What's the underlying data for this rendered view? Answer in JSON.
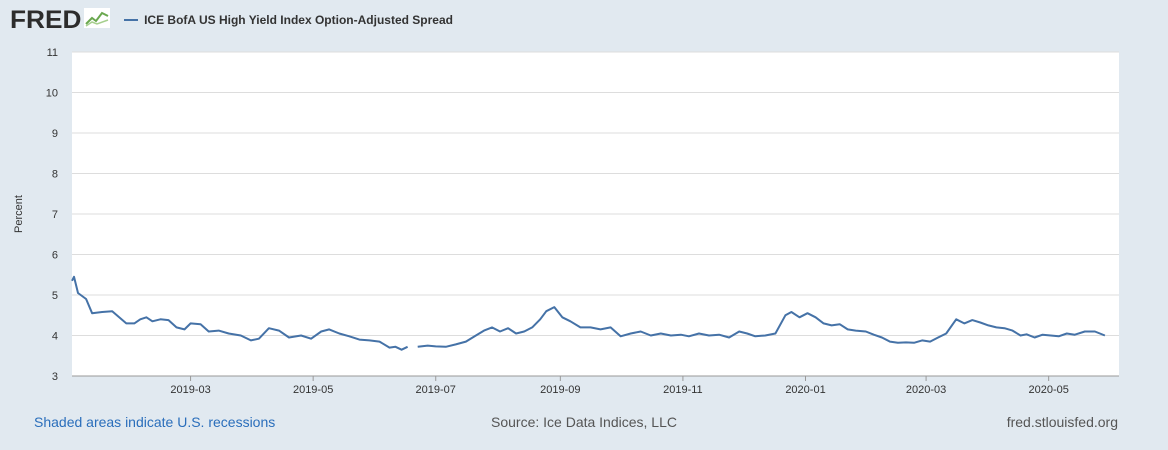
{
  "header": {
    "logo_text": "FRED",
    "logo_icon": "chart-line-icon",
    "legend_label": "ICE BofA US High Yield Index Option-Adjusted Spread"
  },
  "footer": {
    "recessions_note": "Shaded areas indicate U.S. recessions",
    "source": "Source: Ice Data Indices, LLC",
    "site": "fred.stlouisfed.org"
  },
  "colors": {
    "line": "#4572a7",
    "background": "#e1e9f0",
    "plot_background": "#ffffff",
    "grid": "#dddddd",
    "link": "#2a6ebb"
  },
  "chart_data": {
    "type": "line",
    "title": "ICE BofA US High Yield Index Option-Adjusted Spread",
    "xlabel": "",
    "ylabel": "Percent",
    "ylim": [
      3,
      11
    ],
    "yticks": [
      3,
      4,
      5,
      6,
      7,
      8,
      9,
      10,
      11
    ],
    "xlim": [
      "2019-01-01",
      "2020-06-05"
    ],
    "xticks": [
      {
        "date": "2019-03-01",
        "label": "2019-03"
      },
      {
        "date": "2019-05-01",
        "label": "2019-05"
      },
      {
        "date": "2019-07-01",
        "label": "2019-07"
      },
      {
        "date": "2019-09-01",
        "label": "2019-09"
      },
      {
        "date": "2019-11-01",
        "label": "2019-11"
      },
      {
        "date": "2020-01-01",
        "label": "2020-01"
      },
      {
        "date": "2020-03-01",
        "label": "2020-03"
      },
      {
        "date": "2020-05-01",
        "label": "2020-05"
      }
    ],
    "grid": true,
    "series": [
      {
        "name": "ICE BofA US High Yield Index Option-Adjusted Spread",
        "segments": [
          [
            [
              "2019-01-01",
              5.35
            ],
            [
              "2019-01-02",
              5.45
            ],
            [
              "2019-01-04",
              5.05
            ],
            [
              "2019-01-08",
              4.9
            ],
            [
              "2019-01-11",
              4.55
            ],
            [
              "2019-01-16",
              4.58
            ],
            [
              "2019-01-21",
              4.6
            ],
            [
              "2019-01-28",
              4.3
            ],
            [
              "2019-02-01",
              4.3
            ],
            [
              "2019-02-04",
              4.4
            ],
            [
              "2019-02-07",
              4.45
            ],
            [
              "2019-02-10",
              4.35
            ],
            [
              "2019-02-14",
              4.4
            ],
            [
              "2019-02-18",
              4.38
            ],
            [
              "2019-02-22",
              4.2
            ],
            [
              "2019-02-26",
              4.15
            ],
            [
              "2019-03-01",
              4.3
            ],
            [
              "2019-03-06",
              4.28
            ],
            [
              "2019-03-10",
              4.1
            ],
            [
              "2019-03-15",
              4.12
            ],
            [
              "2019-03-20",
              4.05
            ],
            [
              "2019-03-26",
              4.0
            ],
            [
              "2019-03-31",
              3.88
            ],
            [
              "2019-04-04",
              3.92
            ],
            [
              "2019-04-09",
              4.18
            ],
            [
              "2019-04-14",
              4.12
            ],
            [
              "2019-04-19",
              3.95
            ],
            [
              "2019-04-25",
              4.0
            ],
            [
              "2019-04-30",
              3.92
            ],
            [
              "2019-05-05",
              4.1
            ],
            [
              "2019-05-09",
              4.15
            ],
            [
              "2019-05-14",
              4.05
            ],
            [
              "2019-05-19",
              3.98
            ],
            [
              "2019-05-24",
              3.9
            ],
            [
              "2019-05-29",
              3.88
            ],
            [
              "2019-06-03",
              3.85
            ],
            [
              "2019-06-08",
              3.7
            ],
            [
              "2019-06-11",
              3.72
            ],
            [
              "2019-06-14",
              3.65
            ],
            [
              "2019-06-17",
              3.72
            ]
          ],
          [
            [
              "2019-06-22",
              3.72
            ],
            [
              "2019-06-27",
              3.75
            ],
            [
              "2019-07-01",
              3.73
            ],
            [
              "2019-07-06",
              3.72
            ],
            [
              "2019-07-11",
              3.78
            ],
            [
              "2019-07-16",
              3.85
            ],
            [
              "2019-07-21",
              4.0
            ],
            [
              "2019-07-25",
              4.12
            ],
            [
              "2019-07-29",
              4.2
            ],
            [
              "2019-08-02",
              4.1
            ],
            [
              "2019-08-06",
              4.18
            ],
            [
              "2019-08-10",
              4.05
            ],
            [
              "2019-08-14",
              4.1
            ],
            [
              "2019-08-18",
              4.2
            ],
            [
              "2019-08-22",
              4.4
            ],
            [
              "2019-08-25",
              4.6
            ],
            [
              "2019-08-29",
              4.7
            ],
            [
              "2019-09-02",
              4.45
            ],
            [
              "2019-09-06",
              4.35
            ],
            [
              "2019-09-11",
              4.2
            ],
            [
              "2019-09-16",
              4.2
            ],
            [
              "2019-09-21",
              4.15
            ],
            [
              "2019-09-26",
              4.2
            ],
            [
              "2019-10-01",
              3.98
            ],
            [
              "2019-10-06",
              4.05
            ],
            [
              "2019-10-11",
              4.1
            ],
            [
              "2019-10-16",
              4.0
            ],
            [
              "2019-10-21",
              4.05
            ],
            [
              "2019-10-26",
              4.0
            ],
            [
              "2019-10-31",
              4.02
            ],
            [
              "2019-11-04",
              3.98
            ],
            [
              "2019-11-09",
              4.05
            ],
            [
              "2019-11-14",
              4.0
            ],
            [
              "2019-11-19",
              4.02
            ],
            [
              "2019-11-24",
              3.95
            ],
            [
              "2019-11-29",
              4.1
            ],
            [
              "2019-12-03",
              4.05
            ],
            [
              "2019-12-07",
              3.98
            ],
            [
              "2019-12-12",
              4.0
            ],
            [
              "2019-12-17",
              4.05
            ],
            [
              "2019-12-22",
              4.5
            ],
            [
              "2019-12-25",
              4.58
            ],
            [
              "2019-12-29",
              4.45
            ],
            [
              "2020-01-02",
              4.55
            ],
            [
              "2020-01-06",
              4.45
            ],
            [
              "2020-01-10",
              4.3
            ],
            [
              "2020-01-14",
              4.25
            ],
            [
              "2020-01-18",
              4.28
            ],
            [
              "2020-01-22",
              4.15
            ],
            [
              "2020-01-26",
              4.12
            ],
            [
              "2020-01-31",
              4.1
            ],
            [
              "2020-02-04",
              4.02
            ],
            [
              "2020-02-08",
              3.95
            ],
            [
              "2020-02-12",
              3.85
            ],
            [
              "2020-02-16",
              3.82
            ],
            [
              "2020-02-20",
              3.83
            ],
            [
              "2020-02-24",
              3.82
            ],
            [
              "2020-02-28",
              3.88
            ],
            [
              "2020-03-03",
              3.85
            ],
            [
              "2020-03-07",
              3.95
            ],
            [
              "2020-03-11",
              4.05
            ],
            [
              "2020-03-16",
              4.4
            ],
            [
              "2020-03-20",
              4.3
            ],
            [
              "2020-03-24",
              4.38
            ],
            [
              "2020-03-28",
              4.32
            ],
            [
              "2020-04-01",
              4.25
            ],
            [
              "2020-04-05",
              4.2
            ],
            [
              "2020-04-09",
              4.18
            ],
            [
              "2020-04-13",
              4.12
            ],
            [
              "2020-04-17",
              4.0
            ],
            [
              "2020-04-20",
              4.03
            ],
            [
              "2020-04-24",
              3.95
            ],
            [
              "2020-04-28",
              4.02
            ],
            [
              "2020-05-02",
              4.0
            ],
            [
              "2020-05-06",
              3.98
            ],
            [
              "2020-05-10",
              4.05
            ],
            [
              "2020-05-14",
              4.02
            ],
            [
              "2020-05-19",
              4.1
            ],
            [
              "2020-05-24",
              4.1
            ],
            [
              "2020-05-29",
              4.0
            ]
          ]
        ]
      }
    ]
  }
}
